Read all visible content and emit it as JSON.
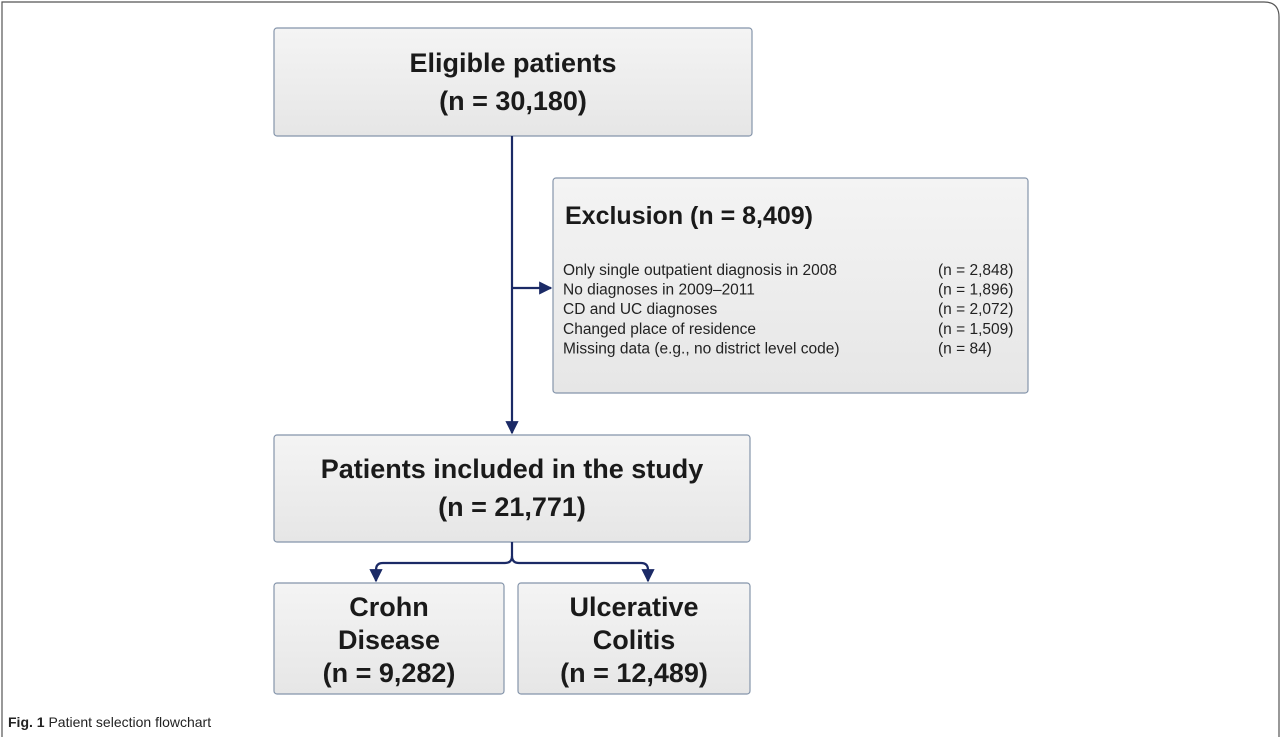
{
  "nodes": {
    "eligible": {
      "title": "Eligible patients",
      "count": "(n = 30,180)"
    },
    "exclusion": {
      "title": "Exclusion (n = 8,409)",
      "items": [
        [
          "Only single outpatient diagnosis in 2008",
          "(n = 2,848)"
        ],
        [
          "No diagnoses in 2009–2011",
          "(n = 1,896)"
        ],
        [
          "CD and UC diagnoses",
          "(n = 2,072)"
        ],
        [
          "Changed place of residence",
          "(n = 1,509)"
        ],
        [
          "Missing data (e.g., no district level code)",
          "(n = 84)"
        ]
      ]
    },
    "included": {
      "title": "Patients included in the study",
      "count": "(n = 21,771)"
    },
    "crohn": {
      "lines": [
        "Crohn",
        "Disease"
      ],
      "count": "(n = 9,282)"
    },
    "uc": {
      "lines": [
        "Ulcerative",
        "Colitis"
      ],
      "count": "(n = 12,489)"
    }
  },
  "caption": {
    "label": "Fig. 1",
    "text": "Patient selection flowchart"
  }
}
